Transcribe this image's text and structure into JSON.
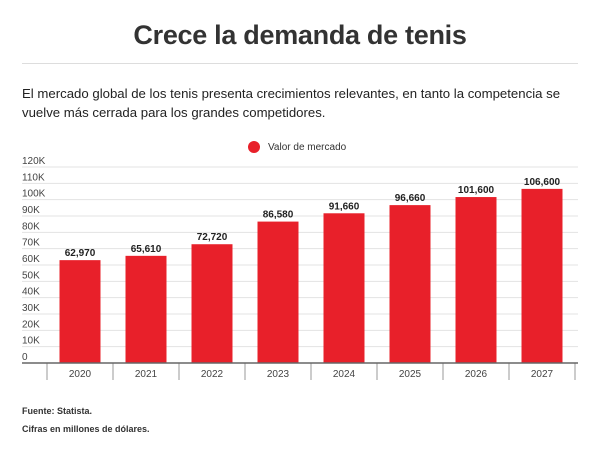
{
  "title": "Crece la demanda de tenis",
  "description": "El mercado global de los tenis presenta crecimientos relevantes, en tanto la competencia se vuelve más cerrada para los grandes competidores.",
  "footer": {
    "source": "Fuente: Statista.",
    "note": "Cifras en millones de dólares."
  },
  "colors": {
    "bar": "#e8202a"
  },
  "chart_data": {
    "type": "bar",
    "title": "Crece la demanda de tenis",
    "categories": [
      "2020",
      "2021",
      "2022",
      "2023",
      "2024",
      "2025",
      "2026",
      "2027"
    ],
    "series": [
      {
        "name": "Valor de mercado",
        "values": [
          62970,
          65610,
          72720,
          86580,
          91660,
          96660,
          101600,
          106600
        ]
      }
    ],
    "data_labels": [
      "62,970",
      "65,610",
      "72,720",
      "86,580",
      "91,660",
      "96,660",
      "101,600",
      "106,600"
    ],
    "yticks": [
      "0",
      "10K",
      "20K",
      "30K",
      "40K",
      "50K",
      "60K",
      "70K",
      "80K",
      "90K",
      "100K",
      "110K",
      "120K"
    ],
    "ylim": [
      0,
      120000
    ],
    "grid": true,
    "legend": "top"
  }
}
